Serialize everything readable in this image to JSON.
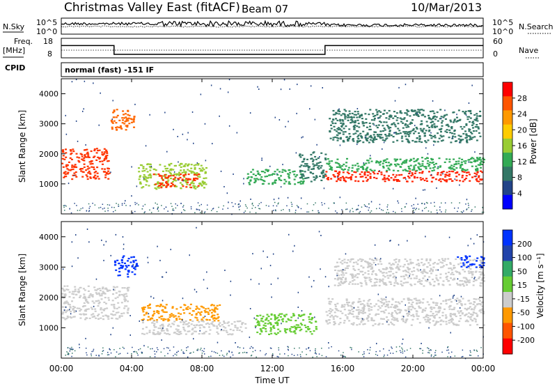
{
  "header": {
    "station": "Christmas Valley East (fitACF)",
    "beam": "Beam 07",
    "date": "10/Mar/2013"
  },
  "noise_panel": {
    "left_label": "N.Sky",
    "right_label": "N.Search",
    "left_ticks": [
      "10^5",
      "10^0"
    ],
    "right_ticks": [
      "10^5",
      "10^0"
    ]
  },
  "freq_panel": {
    "left_label_line1": "Freq.",
    "left_label_line2": "[MHz]",
    "right_label": "Nave",
    "left_ticks": [
      "18",
      "8"
    ],
    "right_ticks": [
      "60",
      "0"
    ],
    "freq_steps": [
      {
        "from_hour": 0,
        "to_hour": 3.0,
        "mhz": 15.0
      },
      {
        "from_hour": 3.0,
        "to_hour": 15.0,
        "mhz": 10.5
      },
      {
        "from_hour": 15.0,
        "to_hour": 24,
        "mhz": 15.0
      }
    ]
  },
  "cpid": {
    "label": "CPID",
    "value": "normal (fast) -151 IF"
  },
  "x_axis": {
    "title": "Time UT",
    "ticks": [
      "00:00",
      "04:00",
      "08:00",
      "12:00",
      "16:00",
      "20:00",
      "00:00"
    ],
    "range_hours": [
      0,
      24
    ]
  },
  "power_panel": {
    "ylabel": "Slant Range [km]",
    "yticks": [
      "1000",
      "2000",
      "3000",
      "4000"
    ],
    "colorbar_label": "Power [dB]",
    "colorbar_ticks": [
      "28",
      "24",
      "20",
      "16",
      "12",
      "8",
      "4"
    ],
    "colorbar_colors": [
      "#ff0000",
      "#ff5500",
      "#ff9900",
      "#ffcc00",
      "#99cc33",
      "#33aa55",
      "#337766",
      "#224488",
      "#0000ff"
    ]
  },
  "velocity_panel": {
    "ylabel": "Slant Range [km]",
    "yticks": [
      "1000",
      "2000",
      "3000",
      "4000"
    ],
    "colorbar_label": "Velocity [m s⁻¹]",
    "colorbar_ticks": [
      "200",
      "100",
      "50",
      "15",
      "-15",
      "-50",
      "-100",
      "-200"
    ],
    "colorbar_colors": [
      "#0033ff",
      "#2244aa",
      "#33aa66",
      "#66cc33",
      "#cccccc",
      "#ff9900",
      "#ff5500",
      "#ff0000"
    ]
  },
  "chart_data": [
    {
      "type": "heatmap",
      "title": "Power [dB]",
      "ylabel": "Slant Range [km]",
      "xlabel": "Time UT",
      "xlim_hours": [
        0,
        24
      ],
      "ylim": [
        0,
        4500
      ],
      "regions": [
        {
          "t0": 0.0,
          "t1": 2.7,
          "r0": 1150,
          "r1": 2200,
          "power_db": 24,
          "color": "#ff3300"
        },
        {
          "t0": 2.8,
          "t1": 4.2,
          "r0": 2800,
          "r1": 3500,
          "power_db": 26,
          "color": "#ff6600"
        },
        {
          "t0": 4.3,
          "t1": 8.2,
          "r0": 850,
          "r1": 1700,
          "power_db": 18,
          "color": "#99cc33"
        },
        {
          "t0": 5.2,
          "t1": 7.8,
          "r0": 900,
          "r1": 1350,
          "power_db": 28,
          "color": "#ff3300"
        },
        {
          "t0": 10.5,
          "t1": 13.8,
          "r0": 1000,
          "r1": 1500,
          "power_db": 16,
          "color": "#33aa55"
        },
        {
          "t0": 13.5,
          "t1": 15.0,
          "r0": 1100,
          "r1": 2100,
          "power_db": 12,
          "color": "#337766"
        },
        {
          "t0": 15.0,
          "t1": 24.0,
          "r0": 1100,
          "r1": 1450,
          "power_db": 28,
          "color": "#ff2200"
        },
        {
          "t0": 15.0,
          "t1": 24.0,
          "r0": 1450,
          "r1": 1900,
          "power_db": 14,
          "color": "#33aa55"
        },
        {
          "t0": 15.2,
          "t1": 23.8,
          "r0": 2400,
          "r1": 3500,
          "power_db": 12,
          "color": "#337766"
        }
      ]
    },
    {
      "type": "heatmap",
      "title": "Velocity [m s⁻¹]",
      "ylabel": "Slant Range [km]",
      "xlabel": "Time UT",
      "xlim_hours": [
        0,
        24
      ],
      "ylim": [
        0,
        4500
      ],
      "regions": [
        {
          "t0": 0.0,
          "t1": 3.8,
          "r0": 1300,
          "r1": 2400,
          "velocity": 0,
          "color": "#cccccc"
        },
        {
          "t0": 3.0,
          "t1": 4.3,
          "r0": 2700,
          "r1": 3400,
          "velocity": 250,
          "color": "#0033ff"
        },
        {
          "t0": 4.5,
          "t1": 9.0,
          "r0": 1250,
          "r1": 1800,
          "velocity": -40,
          "color": "#ff9900"
        },
        {
          "t0": 4.5,
          "t1": 10.5,
          "r0": 800,
          "r1": 1250,
          "velocity": 0,
          "color": "#cccccc"
        },
        {
          "t0": 11.0,
          "t1": 14.5,
          "r0": 800,
          "r1": 1500,
          "velocity": 30,
          "color": "#66cc33"
        },
        {
          "t0": 15.0,
          "t1": 24.0,
          "r0": 1100,
          "r1": 2000,
          "velocity": 0,
          "color": "#cccccc"
        },
        {
          "t0": 15.5,
          "t1": 24.0,
          "r0": 2400,
          "r1": 3300,
          "velocity": 0,
          "color": "#cccccc"
        },
        {
          "t0": 22.5,
          "t1": 24.0,
          "r0": 3000,
          "r1": 3400,
          "velocity": 180,
          "color": "#0033ff"
        }
      ]
    }
  ]
}
